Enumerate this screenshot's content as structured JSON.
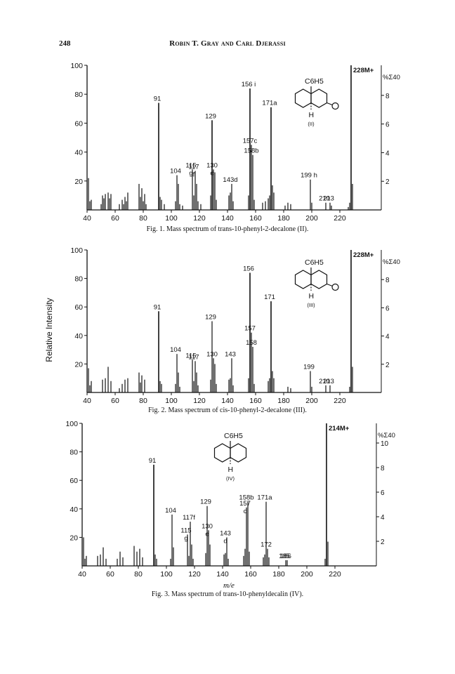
{
  "page": {
    "page_number": "248",
    "running_head": "Robin T. Gray and Carl Djerassi",
    "y_axis_label": "Relative Intensity",
    "x_axis_label": "m/e"
  },
  "chart_data": [
    {
      "type": "bar",
      "caption": "Fig. 1. Mass spectrum of trans-10-phenyl-2-decalone (II).",
      "x_ticks": [
        40,
        60,
        80,
        100,
        120,
        140,
        160,
        180,
        200,
        220
      ],
      "xlim": [
        40,
        240
      ],
      "y_ticks": [
        20,
        40,
        60,
        80,
        100
      ],
      "ylim": [
        0,
        100
      ],
      "right_axis_label": "%Σ40",
      "right_ticks": [
        2,
        4,
        6,
        8
      ],
      "right_max": 10.1,
      "structure": {
        "substituent": "C6H5",
        "hydrogen": "H",
        "ketone": "O",
        "label": "(II)"
      },
      "peaks": [
        {
          "mz": 41,
          "y": 22
        },
        {
          "mz": 42,
          "y": 6
        },
        {
          "mz": 43,
          "y": 7
        },
        {
          "mz": 50,
          "y": 4
        },
        {
          "mz": 51,
          "y": 10
        },
        {
          "mz": 52,
          "y": 8
        },
        {
          "mz": 53,
          "y": 11
        },
        {
          "mz": 55,
          "y": 12
        },
        {
          "mz": 56,
          "y": 8
        },
        {
          "mz": 57,
          "y": 11
        },
        {
          "mz": 63,
          "y": 4
        },
        {
          "mz": 65,
          "y": 7
        },
        {
          "mz": 66,
          "y": 4
        },
        {
          "mz": 67,
          "y": 9
        },
        {
          "mz": 68,
          "y": 6
        },
        {
          "mz": 69,
          "y": 12
        },
        {
          "mz": 77,
          "y": 18
        },
        {
          "mz": 78,
          "y": 9
        },
        {
          "mz": 79,
          "y": 15
        },
        {
          "mz": 80,
          "y": 6
        },
        {
          "mz": 81,
          "y": 11
        },
        {
          "mz": 82,
          "y": 4
        },
        {
          "mz": 91,
          "y": 74
        },
        {
          "mz": 92,
          "y": 9
        },
        {
          "mz": 93,
          "y": 7
        },
        {
          "mz": 95,
          "y": 4
        },
        {
          "mz": 103,
          "y": 6
        },
        {
          "mz": 104,
          "y": 24
        },
        {
          "mz": 105,
          "y": 18
        },
        {
          "mz": 106,
          "y": 4
        },
        {
          "mz": 108,
          "y": 3
        },
        {
          "mz": 115,
          "y": 28
        },
        {
          "mz": 116,
          "y": 10
        },
        {
          "mz": 117,
          "y": 27
        },
        {
          "mz": 118,
          "y": 18
        },
        {
          "mz": 119,
          "y": 6
        },
        {
          "mz": 121,
          "y": 4
        },
        {
          "mz": 128,
          "y": 10
        },
        {
          "mz": 129,
          "y": 62
        },
        {
          "mz": 130,
          "y": 28
        },
        {
          "mz": 131,
          "y": 26
        },
        {
          "mz": 132,
          "y": 7
        },
        {
          "mz": 141,
          "y": 10
        },
        {
          "mz": 142,
          "y": 12
        },
        {
          "mz": 143,
          "y": 18
        },
        {
          "mz": 144,
          "y": 6
        },
        {
          "mz": 155,
          "y": 10
        },
        {
          "mz": 156,
          "y": 84
        },
        {
          "mz": 157,
          "y": 45
        },
        {
          "mz": 158,
          "y": 38
        },
        {
          "mz": 159,
          "y": 7
        },
        {
          "mz": 165,
          "y": 5
        },
        {
          "mz": 167,
          "y": 6
        },
        {
          "mz": 169,
          "y": 8
        },
        {
          "mz": 170,
          "y": 10
        },
        {
          "mz": 171,
          "y": 71
        },
        {
          "mz": 172,
          "y": 17
        },
        {
          "mz": 173,
          "y": 12
        },
        {
          "mz": 181,
          "y": 3
        },
        {
          "mz": 183,
          "y": 5
        },
        {
          "mz": 185,
          "y": 4
        },
        {
          "mz": 199,
          "y": 21
        },
        {
          "mz": 200,
          "y": 5
        },
        {
          "mz": 210,
          "y": 5
        },
        {
          "mz": 213,
          "y": 5
        },
        {
          "mz": 214,
          "y": 3
        },
        {
          "mz": 226,
          "y": 2
        },
        {
          "mz": 227,
          "y": 5
        },
        {
          "mz": 228,
          "y": 100
        },
        {
          "mz": 229,
          "y": 18
        }
      ],
      "labels": [
        {
          "mz": 91,
          "text": "91"
        },
        {
          "mz": 104,
          "text": "104"
        },
        {
          "mz": 115,
          "text": "115"
        },
        {
          "mz": 115,
          "text": "g"
        },
        {
          "mz": 117,
          "text": "117"
        },
        {
          "mz": 117,
          "text": "f"
        },
        {
          "mz": 129,
          "text": "129"
        },
        {
          "mz": 130,
          "text": "130"
        },
        {
          "mz": 130,
          "text": "e"
        },
        {
          "mz": 143,
          "text": "143d"
        },
        {
          "mz": 156,
          "text": "156 i"
        },
        {
          "mz": 157,
          "text": "157c"
        },
        {
          "mz": 158,
          "text": "158b"
        },
        {
          "mz": 171,
          "text": "171a"
        },
        {
          "mz": 199,
          "text": "199 h"
        },
        {
          "mz": 210,
          "text": "210"
        },
        {
          "mz": 213,
          "text": "213"
        },
        {
          "mz": 228,
          "text": "228M+"
        }
      ]
    },
    {
      "type": "bar",
      "caption": "Fig. 2. Mass spectrum of cis-10-phenyl-2-decalone (III).",
      "x_ticks": [
        40,
        60,
        80,
        100,
        120,
        140,
        160,
        180,
        200,
        220
      ],
      "xlim": [
        40,
        240
      ],
      "y_ticks": [
        20,
        40,
        60,
        80,
        100
      ],
      "ylim": [
        0,
        100
      ],
      "right_axis_label": "%Σ40",
      "right_ticks": [
        2,
        4,
        6,
        8
      ],
      "right_max": 10.1,
      "structure": {
        "substituent": "C6H5",
        "hydrogen": "H",
        "ketone": "O",
        "label": "(III)"
      },
      "peaks": [
        {
          "mz": 41,
          "y": 17
        },
        {
          "mz": 42,
          "y": 5
        },
        {
          "mz": 43,
          "y": 8
        },
        {
          "mz": 51,
          "y": 9
        },
        {
          "mz": 53,
          "y": 10
        },
        {
          "mz": 55,
          "y": 18
        },
        {
          "mz": 57,
          "y": 8
        },
        {
          "mz": 63,
          "y": 3
        },
        {
          "mz": 65,
          "y": 6
        },
        {
          "mz": 67,
          "y": 9
        },
        {
          "mz": 69,
          "y": 10
        },
        {
          "mz": 77,
          "y": 14
        },
        {
          "mz": 78,
          "y": 7
        },
        {
          "mz": 79,
          "y": 12
        },
        {
          "mz": 81,
          "y": 9
        },
        {
          "mz": 91,
          "y": 57
        },
        {
          "mz": 92,
          "y": 8
        },
        {
          "mz": 93,
          "y": 6
        },
        {
          "mz": 103,
          "y": 6
        },
        {
          "mz": 104,
          "y": 27
        },
        {
          "mz": 105,
          "y": 14
        },
        {
          "mz": 106,
          "y": 4
        },
        {
          "mz": 115,
          "y": 23
        },
        {
          "mz": 116,
          "y": 8
        },
        {
          "mz": 117,
          "y": 22
        },
        {
          "mz": 118,
          "y": 14
        },
        {
          "mz": 119,
          "y": 5
        },
        {
          "mz": 128,
          "y": 9
        },
        {
          "mz": 129,
          "y": 50
        },
        {
          "mz": 130,
          "y": 24
        },
        {
          "mz": 131,
          "y": 20
        },
        {
          "mz": 132,
          "y": 6
        },
        {
          "mz": 141,
          "y": 9
        },
        {
          "mz": 142,
          "y": 10
        },
        {
          "mz": 143,
          "y": 24
        },
        {
          "mz": 144,
          "y": 5
        },
        {
          "mz": 155,
          "y": 10
        },
        {
          "mz": 156,
          "y": 84
        },
        {
          "mz": 157,
          "y": 42
        },
        {
          "mz": 158,
          "y": 32
        },
        {
          "mz": 159,
          "y": 6
        },
        {
          "mz": 169,
          "y": 8
        },
        {
          "mz": 170,
          "y": 10
        },
        {
          "mz": 171,
          "y": 64
        },
        {
          "mz": 172,
          "y": 15
        },
        {
          "mz": 173,
          "y": 10
        },
        {
          "mz": 183,
          "y": 4
        },
        {
          "mz": 185,
          "y": 3
        },
        {
          "mz": 199,
          "y": 15
        },
        {
          "mz": 200,
          "y": 4
        },
        {
          "mz": 210,
          "y": 5
        },
        {
          "mz": 213,
          "y": 5
        },
        {
          "mz": 227,
          "y": 4
        },
        {
          "mz": 228,
          "y": 100
        },
        {
          "mz": 229,
          "y": 18
        }
      ],
      "labels": [
        {
          "mz": 91,
          "text": "91"
        },
        {
          "mz": 104,
          "text": "104"
        },
        {
          "mz": 115,
          "text": "115"
        },
        {
          "mz": 117,
          "text": "117"
        },
        {
          "mz": 129,
          "text": "129"
        },
        {
          "mz": 130,
          "text": "130"
        },
        {
          "mz": 143,
          "text": "143"
        },
        {
          "mz": 156,
          "text": "156"
        },
        {
          "mz": 157,
          "text": "157"
        },
        {
          "mz": 158,
          "text": "158"
        },
        {
          "mz": 171,
          "text": "171"
        },
        {
          "mz": 199,
          "text": "199"
        },
        {
          "mz": 210,
          "text": "210"
        },
        {
          "mz": 213,
          "text": "213"
        },
        {
          "mz": 228,
          "text": "228M+"
        }
      ]
    },
    {
      "type": "bar",
      "caption": "Fig. 3. Mass spectrum of trans-10-phenyldecalin (IV).",
      "x_ticks": [
        40,
        60,
        80,
        100,
        120,
        140,
        160,
        180,
        200,
        220
      ],
      "xlim": [
        40,
        240
      ],
      "y_ticks": [
        20,
        40,
        60,
        80,
        100
      ],
      "ylim": [
        0,
        100
      ],
      "right_axis_label": "%Σ40",
      "right_ticks": [
        2,
        4,
        6,
        8,
        10
      ],
      "right_max": 11.6,
      "structure": {
        "substituent": "C6H5",
        "hydrogen": "H",
        "label": "(IV)"
      },
      "peaks": [
        {
          "mz": 41,
          "y": 20
        },
        {
          "mz": 42,
          "y": 5
        },
        {
          "mz": 43,
          "y": 7
        },
        {
          "mz": 51,
          "y": 7
        },
        {
          "mz": 53,
          "y": 8
        },
        {
          "mz": 55,
          "y": 13
        },
        {
          "mz": 57,
          "y": 5
        },
        {
          "mz": 65,
          "y": 5
        },
        {
          "mz": 67,
          "y": 10
        },
        {
          "mz": 69,
          "y": 6
        },
        {
          "mz": 77,
          "y": 14
        },
        {
          "mz": 79,
          "y": 10
        },
        {
          "mz": 81,
          "y": 12
        },
        {
          "mz": 83,
          "y": 6
        },
        {
          "mz": 91,
          "y": 71
        },
        {
          "mz": 92,
          "y": 8
        },
        {
          "mz": 93,
          "y": 5
        },
        {
          "mz": 103,
          "y": 5
        },
        {
          "mz": 104,
          "y": 36
        },
        {
          "mz": 105,
          "y": 13
        },
        {
          "mz": 115,
          "y": 22
        },
        {
          "mz": 116,
          "y": 7
        },
        {
          "mz": 117,
          "y": 31
        },
        {
          "mz": 118,
          "y": 15
        },
        {
          "mz": 119,
          "y": 5
        },
        {
          "mz": 128,
          "y": 9
        },
        {
          "mz": 129,
          "y": 42
        },
        {
          "mz": 130,
          "y": 25
        },
        {
          "mz": 131,
          "y": 15
        },
        {
          "mz": 141,
          "y": 8
        },
        {
          "mz": 142,
          "y": 9
        },
        {
          "mz": 143,
          "y": 20
        },
        {
          "mz": 144,
          "y": 5
        },
        {
          "mz": 155,
          "y": 7
        },
        {
          "mz": 156,
          "y": 12
        },
        {
          "mz": 157,
          "y": 41
        },
        {
          "mz": 158,
          "y": 45
        },
        {
          "mz": 159,
          "y": 10
        },
        {
          "mz": 169,
          "y": 6
        },
        {
          "mz": 170,
          "y": 8
        },
        {
          "mz": 171,
          "y": 45
        },
        {
          "mz": 172,
          "y": 12
        },
        {
          "mz": 173,
          "y": 6
        },
        {
          "mz": 185,
          "y": 4
        },
        {
          "mz": 186,
          "y": 4
        },
        {
          "mz": 213,
          "y": 5
        },
        {
          "mz": 214,
          "y": 100
        },
        {
          "mz": 215,
          "y": 17
        }
      ],
      "labels": [
        {
          "mz": 91,
          "text": "91"
        },
        {
          "mz": 104,
          "text": "104"
        },
        {
          "mz": 115,
          "text": "115"
        },
        {
          "mz": 115,
          "text": "g"
        },
        {
          "mz": 117,
          "text": "117f"
        },
        {
          "mz": 129,
          "text": "129"
        },
        {
          "mz": 130,
          "text": "130"
        },
        {
          "mz": 130,
          "text": "e"
        },
        {
          "mz": 143,
          "text": "143"
        },
        {
          "mz": 143,
          "text": "d"
        },
        {
          "mz": 157,
          "text": "157"
        },
        {
          "mz": 157,
          "text": "c"
        },
        {
          "mz": 158,
          "text": "158b"
        },
        {
          "mz": 171,
          "text": "171a"
        },
        {
          "mz": 172,
          "text": "172"
        },
        {
          "mz": 185,
          "text": "185"
        },
        {
          "mz": 186,
          "text": "186"
        },
        {
          "mz": 214,
          "text": "214M+"
        }
      ]
    }
  ]
}
